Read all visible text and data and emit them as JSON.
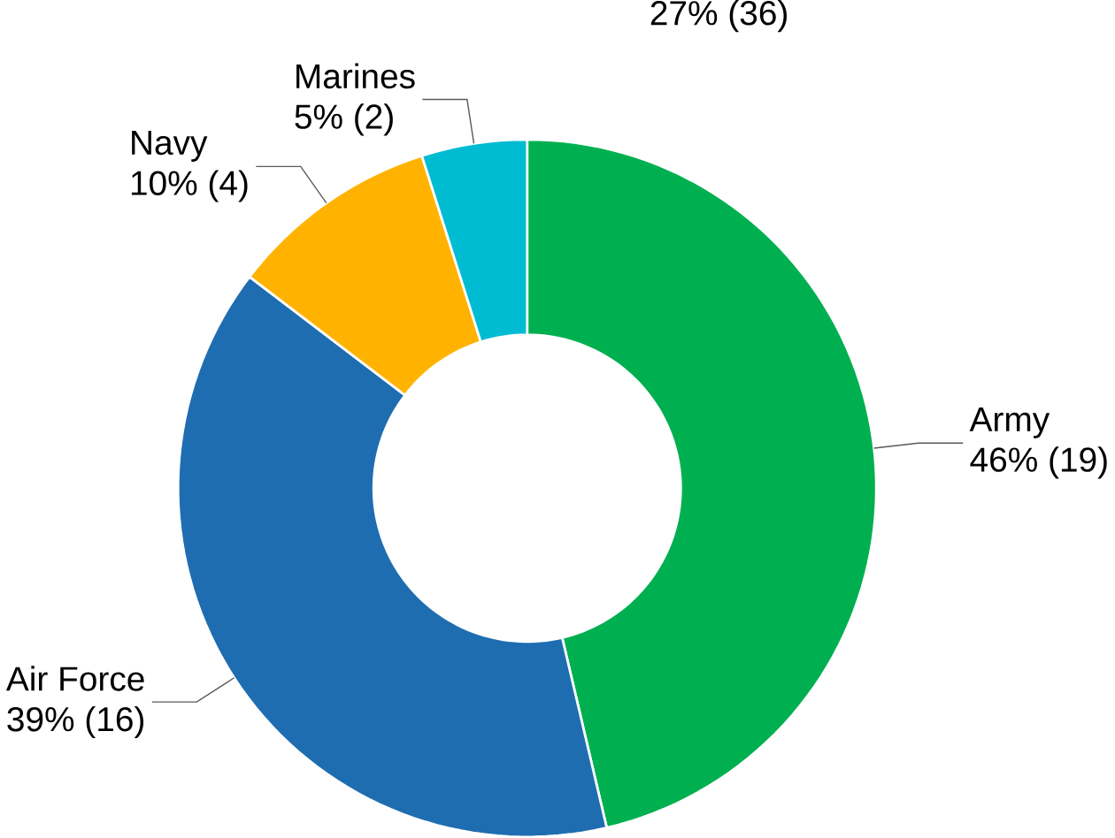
{
  "chart_data": {
    "type": "donut",
    "categories": [
      "Army",
      "Air Force",
      "Navy",
      "Marines"
    ],
    "values": [
      19,
      16,
      4,
      2
    ],
    "value_labels": [
      "46% (19)",
      "39% (16)",
      "10% (4)",
      "5% (2)"
    ],
    "colors": [
      "#00b050",
      "#1f6db1",
      "#ffb300",
      "#00bcd2"
    ],
    "annotations": [
      "27% (36)"
    ]
  }
}
